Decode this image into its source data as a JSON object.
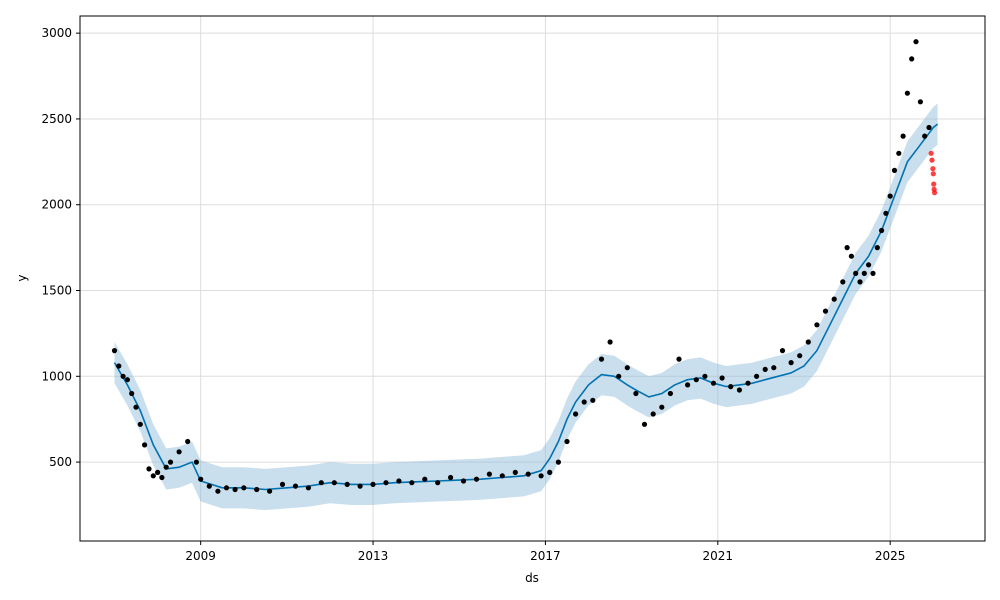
{
  "chart_data": {
    "type": "line",
    "title": "",
    "xlabel": "ds",
    "ylabel": "y",
    "xlim": [
      2006.2,
      2027.2
    ],
    "ylim": [
      40,
      3100
    ],
    "x_ticks": [
      2009,
      2013,
      2017,
      2021,
      2025
    ],
    "x_tick_labels": [
      "2009",
      "2013",
      "2017",
      "2021",
      "2025"
    ],
    "y_ticks": [
      500,
      1000,
      1500,
      2000,
      2500,
      3000
    ],
    "y_tick_labels": [
      "500",
      "1000",
      "1500",
      "2000",
      "2500",
      "3000"
    ],
    "grid": true,
    "colors": {
      "forecast": "#0072b2",
      "band": "#8ab8d8",
      "observed": "#000000",
      "holdout": "#ff0000",
      "grid": "#dddddd"
    },
    "series": [
      {
        "kind": "observed",
        "x": [
          2007.0,
          2007.1,
          2007.2,
          2007.3,
          2007.4,
          2007.5,
          2007.6,
          2007.7,
          2007.8,
          2007.9,
          2008.0,
          2008.1,
          2008.2,
          2008.3,
          2008.5,
          2008.7,
          2008.9,
          2009.0,
          2009.2,
          2009.4,
          2009.6,
          2009.8,
          2010.0,
          2010.3,
          2010.6,
          2010.9,
          2011.2,
          2011.5,
          2011.8,
          2012.1,
          2012.4,
          2012.7,
          2013.0,
          2013.3,
          2013.6,
          2013.9,
          2014.2,
          2014.5,
          2014.8,
          2015.1,
          2015.4,
          2015.7,
          2016.0,
          2016.3,
          2016.6,
          2016.9,
          2017.1,
          2017.3,
          2017.5,
          2017.7,
          2017.9,
          2018.1,
          2018.3,
          2018.5,
          2018.7,
          2018.9,
          2019.1,
          2019.3,
          2019.5,
          2019.7,
          2019.9,
          2020.1,
          2020.3,
          2020.5,
          2020.7,
          2020.9,
          2021.1,
          2021.3,
          2021.5,
          2021.7,
          2021.9,
          2022.1,
          2022.3,
          2022.5,
          2022.7,
          2022.9,
          2023.1,
          2023.3,
          2023.5,
          2023.7,
          2023.9,
          2024.0,
          2024.1,
          2024.2,
          2024.3,
          2024.4,
          2024.5,
          2024.6,
          2024.7,
          2024.8,
          2024.9,
          2025.0,
          2025.1,
          2025.2,
          2025.3,
          2025.4,
          2025.5,
          2025.6,
          2025.7,
          2025.8,
          2025.9
        ],
        "y": [
          1150,
          1060,
          1000,
          980,
          900,
          820,
          720,
          600,
          460,
          420,
          440,
          410,
          470,
          500,
          560,
          620,
          500,
          400,
          360,
          330,
          350,
          340,
          350,
          340,
          330,
          370,
          360,
          350,
          380,
          380,
          370,
          360,
          370,
          380,
          390,
          380,
          400,
          380,
          410,
          390,
          400,
          430,
          420,
          440,
          430,
          420,
          440,
          500,
          620,
          780,
          850,
          860,
          1100,
          1200,
          1000,
          1050,
          900,
          720,
          780,
          820,
          900,
          1100,
          950,
          980,
          1000,
          960,
          990,
          940,
          920,
          960,
          1000,
          1040,
          1050,
          1150,
          1080,
          1120,
          1200,
          1300,
          1380,
          1450,
          1550,
          1750,
          1700,
          1600,
          1550,
          1600,
          1650,
          1600,
          1750,
          1850,
          1950,
          2050,
          2200,
          2300,
          2400,
          2650,
          2850,
          2950,
          2600,
          2400,
          2450
        ]
      },
      {
        "kind": "holdout",
        "x": [
          2025.95,
          2025.97,
          2025.99,
          2026.0,
          2026.01,
          2026.02,
          2026.03
        ],
        "y": [
          2300,
          2260,
          2210,
          2180,
          2120,
          2090,
          2070
        ]
      },
      {
        "kind": "forecast",
        "x": [
          2007.0,
          2007.3,
          2007.6,
          2007.9,
          2008.2,
          2008.5,
          2008.8,
          2009.0,
          2009.5,
          2010.0,
          2010.5,
          2011.0,
          2011.5,
          2012.0,
          2012.5,
          2013.0,
          2013.5,
          2014.0,
          2014.5,
          2015.0,
          2015.5,
          2016.0,
          2016.5,
          2016.9,
          2017.1,
          2017.3,
          2017.5,
          2017.7,
          2018.0,
          2018.3,
          2018.6,
          2018.9,
          2019.1,
          2019.4,
          2019.7,
          2020.0,
          2020.3,
          2020.6,
          2020.9,
          2021.2,
          2021.5,
          2021.8,
          2022.1,
          2022.4,
          2022.7,
          2023.0,
          2023.3,
          2023.6,
          2023.9,
          2024.2,
          2024.5,
          2024.8,
          2025.1,
          2025.4,
          2025.7,
          2026.0,
          2026.1
        ],
        "y": [
          1080,
          950,
          800,
          600,
          460,
          470,
          500,
          390,
          350,
          350,
          340,
          350,
          360,
          380,
          370,
          370,
          380,
          385,
          390,
          395,
          400,
          410,
          420,
          450,
          520,
          620,
          750,
          850,
          950,
          1010,
          1000,
          950,
          920,
          880,
          900,
          950,
          980,
          990,
          960,
          940,
          950,
          960,
          980,
          1000,
          1020,
          1060,
          1150,
          1300,
          1450,
          1600,
          1700,
          1850,
          2050,
          2250,
          2350,
          2450,
          2470
        ]
      },
      {
        "kind": "band",
        "x": [
          2007.0,
          2007.3,
          2007.6,
          2007.9,
          2008.2,
          2008.5,
          2008.8,
          2009.0,
          2009.5,
          2010.0,
          2010.5,
          2011.0,
          2011.5,
          2012.0,
          2012.5,
          2013.0,
          2013.5,
          2014.0,
          2014.5,
          2015.0,
          2015.5,
          2016.0,
          2016.5,
          2016.9,
          2017.1,
          2017.3,
          2017.5,
          2017.7,
          2018.0,
          2018.3,
          2018.6,
          2018.9,
          2019.1,
          2019.4,
          2019.7,
          2020.0,
          2020.3,
          2020.6,
          2020.9,
          2021.2,
          2021.5,
          2021.8,
          2022.1,
          2022.4,
          2022.7,
          2023.0,
          2023.3,
          2023.6,
          2023.9,
          2024.2,
          2024.5,
          2024.8,
          2025.1,
          2025.4,
          2025.7,
          2026.0,
          2026.1
        ],
        "lower": [
          960,
          830,
          680,
          480,
          340,
          350,
          380,
          270,
          230,
          230,
          220,
          230,
          240,
          260,
          250,
          250,
          260,
          265,
          270,
          275,
          280,
          290,
          300,
          330,
          400,
          500,
          630,
          730,
          830,
          890,
          880,
          830,
          800,
          760,
          780,
          830,
          860,
          870,
          840,
          820,
          830,
          840,
          860,
          880,
          900,
          940,
          1030,
          1180,
          1330,
          1480,
          1580,
          1730,
          1930,
          2130,
          2230,
          2330,
          2350
        ],
        "upper": [
          1200,
          1070,
          920,
          720,
          580,
          590,
          620,
          510,
          470,
          470,
          460,
          470,
          480,
          500,
          490,
          490,
          500,
          505,
          510,
          515,
          520,
          530,
          540,
          570,
          640,
          740,
          870,
          970,
          1070,
          1130,
          1120,
          1070,
          1040,
          1000,
          1020,
          1070,
          1100,
          1110,
          1080,
          1060,
          1070,
          1080,
          1100,
          1120,
          1140,
          1180,
          1270,
          1420,
          1570,
          1720,
          1820,
          1970,
          2170,
          2370,
          2470,
          2570,
          2590
        ]
      }
    ]
  }
}
